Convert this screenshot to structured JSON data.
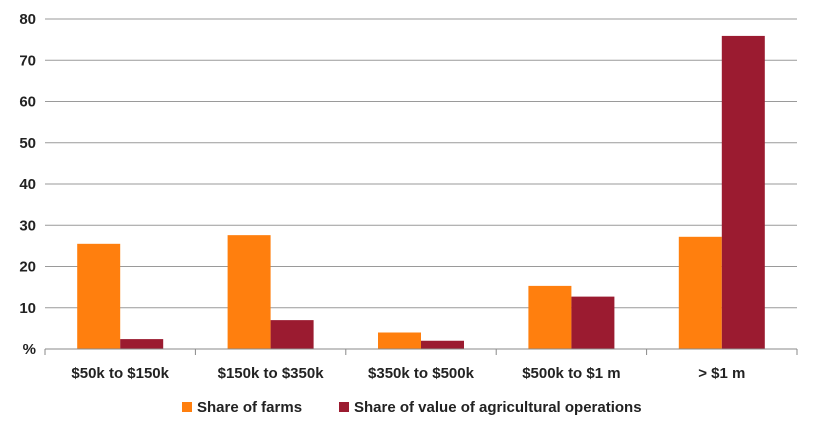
{
  "chart_data": {
    "type": "bar",
    "title": "",
    "xlabel": "",
    "ylabel": "",
    "ylim": [
      0,
      80
    ],
    "yticks": [
      0,
      10,
      20,
      30,
      40,
      50,
      60,
      70,
      80
    ],
    "y_zero_label": "%",
    "grid": true,
    "legend_position": "bottom",
    "categories": [
      "$50k to $150k",
      "$150k to $350k",
      "$350k to $500k",
      "$500k to $1 m",
      "> $1 m"
    ],
    "series": [
      {
        "name": "Share of farms",
        "color": "#ff7f0e",
        "values": [
          25.5,
          27.6,
          4.0,
          15.3,
          27.2
        ]
      },
      {
        "name": "Share of value of agricultural operations",
        "color": "#9b1b30",
        "values": [
          2.4,
          7.0,
          2.0,
          12.7,
          75.9
        ]
      }
    ]
  }
}
